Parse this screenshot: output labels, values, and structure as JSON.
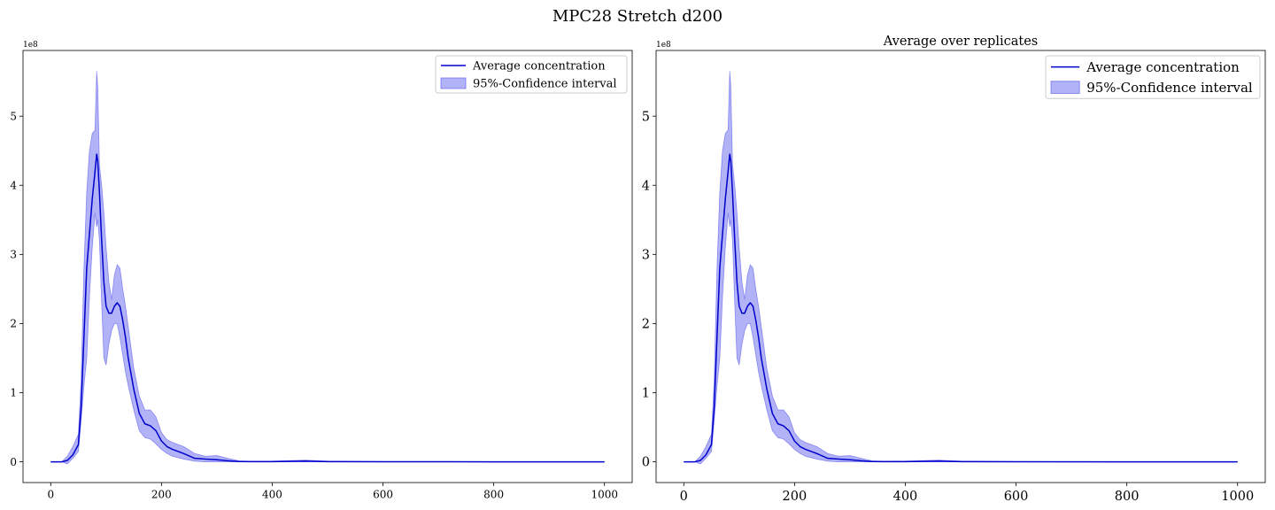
{
  "figure": {
    "title": "MPC28 Stretch d200"
  },
  "chart_data": [
    {
      "type": "line",
      "title": "",
      "xlabel": "",
      "ylabel": "",
      "offset_text": "1e8",
      "xlim": [
        -50,
        1050
      ],
      "ylim": [
        -30000000.0,
        595000000.0
      ],
      "xticks": [
        0,
        200,
        400,
        600,
        800,
        1000
      ],
      "xtick_labels": [
        "0",
        "200",
        "400",
        "600",
        "800",
        "1000"
      ],
      "yticks": [
        0,
        100000000.0,
        200000000.0,
        300000000.0,
        400000000.0,
        500000000.0
      ],
      "ytick_labels": [
        "0",
        "1",
        "2",
        "3",
        "4",
        "5"
      ],
      "legend": {
        "position": "top-right",
        "entries": [
          "Average concentration",
          "95%-Confidence interval"
        ]
      },
      "colors": {
        "line": "#0000cc",
        "band": "#5555ee"
      },
      "series": [
        {
          "name": "Average concentration",
          "x": [
            0,
            20,
            30,
            40,
            50,
            55,
            60,
            65,
            70,
            75,
            80,
            83,
            85,
            88,
            92,
            96,
            100,
            105,
            110,
            115,
            120,
            125,
            130,
            135,
            140,
            150,
            160,
            170,
            180,
            190,
            200,
            210,
            220,
            240,
            260,
            280,
            300,
            320,
            340,
            360,
            400,
            460,
            500,
            600,
            800,
            1000
          ],
          "y": [
            0,
            0,
            2000000.0,
            10000000.0,
            25000000.0,
            80000000.0,
            180000000.0,
            280000000.0,
            330000000.0,
            380000000.0,
            420000000.0,
            445000000.0,
            435000000.0,
            390000000.0,
            320000000.0,
            260000000.0,
            225000000.0,
            215000000.0,
            215000000.0,
            225000000.0,
            230000000.0,
            225000000.0,
            205000000.0,
            180000000.0,
            150000000.0,
            105000000.0,
            70000000.0,
            55000000.0,
            52000000.0,
            45000000.0,
            30000000.0,
            22000000.0,
            18000000.0,
            12000000.0,
            5000000.0,
            4000000.0,
            3000000.0,
            1500000.0,
            500000.0,
            200000.0,
            300000.0,
            1000000.0,
            300000.0,
            100000.0,
            0,
            0
          ]
        },
        {
          "name": "95%-Confidence interval",
          "x": [
            0,
            20,
            30,
            40,
            50,
            55,
            60,
            65,
            70,
            75,
            80,
            83,
            85,
            88,
            92,
            96,
            100,
            105,
            110,
            115,
            120,
            125,
            130,
            135,
            140,
            150,
            160,
            170,
            180,
            190,
            200,
            210,
            220,
            240,
            260,
            280,
            300,
            320,
            340,
            360,
            400,
            460,
            500,
            600,
            800,
            1000
          ],
          "lower": [
            0,
            0,
            -3000000.0,
            5000000.0,
            15000000.0,
            60000000.0,
            110000000.0,
            150000000.0,
            240000000.0,
            310000000.0,
            360000000.0,
            340000000.0,
            350000000.0,
            320000000.0,
            230000000.0,
            150000000.0,
            140000000.0,
            170000000.0,
            190000000.0,
            200000000.0,
            200000000.0,
            180000000.0,
            155000000.0,
            130000000.0,
            110000000.0,
            75000000.0,
            45000000.0,
            35000000.0,
            33000000.0,
            26000000.0,
            18000000.0,
            12000000.0,
            8000000.0,
            4000000.0,
            1000000.0,
            0,
            0,
            0,
            0,
            0,
            0,
            0,
            0,
            0,
            0,
            0
          ],
          "upper": [
            0,
            0,
            8000000.0,
            22000000.0,
            40000000.0,
            120000000.0,
            280000000.0,
            390000000.0,
            450000000.0,
            475000000.0,
            480000000.0,
            565000000.0,
            540000000.0,
            430000000.0,
            400000000.0,
            360000000.0,
            310000000.0,
            260000000.0,
            235000000.0,
            270000000.0,
            285000000.0,
            280000000.0,
            250000000.0,
            225000000.0,
            195000000.0,
            135000000.0,
            95000000.0,
            75000000.0,
            75000000.0,
            65000000.0,
            42000000.0,
            32000000.0,
            28000000.0,
            22000000.0,
            12000000.0,
            8000000.0,
            9000000.0,
            5000000.0,
            1500000.0,
            800000.0,
            1000000.0,
            2500000.0,
            1000000.0,
            300000.0,
            0,
            0
          ]
        }
      ]
    },
    {
      "type": "line",
      "title": "Average over replicates",
      "xlabel": "",
      "ylabel": "",
      "offset_text": "1e8",
      "xlim": [
        -50,
        1050
      ],
      "ylim": [
        -30000000.0,
        595000000.0
      ],
      "xticks": [
        0,
        200,
        400,
        600,
        800,
        1000
      ],
      "xtick_labels": [
        "0",
        "200",
        "400",
        "600",
        "800",
        "1000"
      ],
      "yticks": [
        0,
        100000000.0,
        200000000.0,
        300000000.0,
        400000000.0,
        500000000.0
      ],
      "ytick_labels": [
        "0",
        "1",
        "2",
        "3",
        "4",
        "5"
      ],
      "legend": {
        "position": "top-right",
        "entries": [
          "Average concentration",
          "95%-Confidence interval"
        ]
      },
      "colors": {
        "line": "#0000cc",
        "band": "#5555ee"
      },
      "series": [
        {
          "name": "Average concentration",
          "x": [
            0,
            20,
            30,
            40,
            50,
            55,
            60,
            65,
            70,
            75,
            80,
            83,
            85,
            88,
            92,
            96,
            100,
            105,
            110,
            115,
            120,
            125,
            130,
            135,
            140,
            150,
            160,
            170,
            180,
            190,
            200,
            210,
            220,
            240,
            260,
            280,
            300,
            320,
            340,
            360,
            400,
            460,
            500,
            600,
            800,
            1000
          ],
          "y": [
            0,
            0,
            2000000.0,
            10000000.0,
            25000000.0,
            80000000.0,
            180000000.0,
            280000000.0,
            330000000.0,
            380000000.0,
            420000000.0,
            445000000.0,
            435000000.0,
            390000000.0,
            320000000.0,
            260000000.0,
            225000000.0,
            215000000.0,
            215000000.0,
            225000000.0,
            230000000.0,
            225000000.0,
            205000000.0,
            180000000.0,
            150000000.0,
            105000000.0,
            70000000.0,
            55000000.0,
            52000000.0,
            45000000.0,
            30000000.0,
            22000000.0,
            18000000.0,
            12000000.0,
            5000000.0,
            4000000.0,
            3000000.0,
            1500000.0,
            500000.0,
            200000.0,
            300000.0,
            1000000.0,
            300000.0,
            100000.0,
            0,
            0
          ]
        },
        {
          "name": "95%-Confidence interval",
          "x": [
            0,
            20,
            30,
            40,
            50,
            55,
            60,
            65,
            70,
            75,
            80,
            83,
            85,
            88,
            92,
            96,
            100,
            105,
            110,
            115,
            120,
            125,
            130,
            135,
            140,
            150,
            160,
            170,
            180,
            190,
            200,
            210,
            220,
            240,
            260,
            280,
            300,
            320,
            340,
            360,
            400,
            460,
            500,
            600,
            800,
            1000
          ],
          "lower": [
            0,
            0,
            -3000000.0,
            5000000.0,
            15000000.0,
            60000000.0,
            110000000.0,
            150000000.0,
            240000000.0,
            310000000.0,
            360000000.0,
            340000000.0,
            350000000.0,
            320000000.0,
            230000000.0,
            150000000.0,
            140000000.0,
            170000000.0,
            190000000.0,
            200000000.0,
            200000000.0,
            180000000.0,
            155000000.0,
            130000000.0,
            110000000.0,
            75000000.0,
            45000000.0,
            35000000.0,
            33000000.0,
            26000000.0,
            18000000.0,
            12000000.0,
            8000000.0,
            4000000.0,
            1000000.0,
            0,
            0,
            0,
            0,
            0,
            0,
            0,
            0,
            0,
            0,
            0
          ],
          "upper": [
            0,
            0,
            8000000.0,
            22000000.0,
            40000000.0,
            120000000.0,
            280000000.0,
            390000000.0,
            450000000.0,
            475000000.0,
            480000000.0,
            565000000.0,
            540000000.0,
            430000000.0,
            400000000.0,
            360000000.0,
            310000000.0,
            260000000.0,
            235000000.0,
            270000000.0,
            285000000.0,
            280000000.0,
            250000000.0,
            225000000.0,
            195000000.0,
            135000000.0,
            95000000.0,
            75000000.0,
            75000000.0,
            65000000.0,
            42000000.0,
            32000000.0,
            28000000.0,
            22000000.0,
            12000000.0,
            8000000.0,
            9000000.0,
            5000000.0,
            1500000.0,
            800000.0,
            1000000.0,
            2500000.0,
            1000000.0,
            300000.0,
            0,
            0
          ]
        }
      ]
    }
  ]
}
